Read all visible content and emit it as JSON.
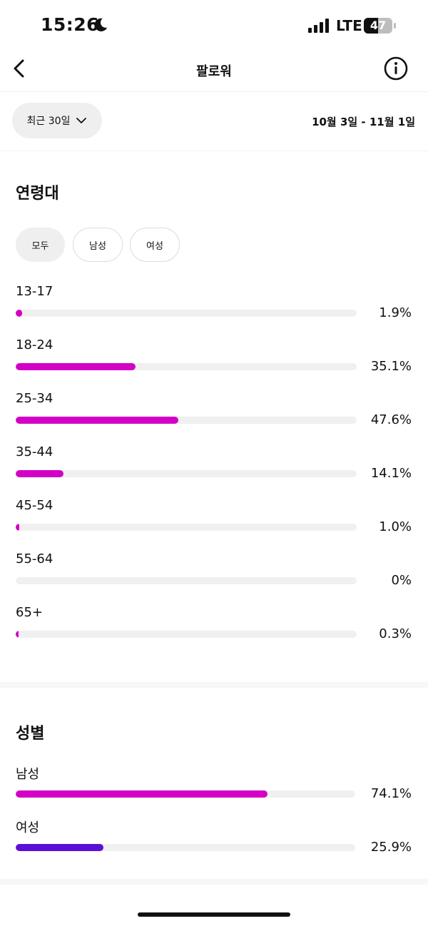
{
  "status_bar": {
    "time": "15:26",
    "network": "LTE",
    "battery": "47"
  },
  "nav": {
    "title": "팔로워"
  },
  "range": {
    "selected": "최근 30일",
    "dates": "10월 3일 - 11월 1일"
  },
  "age": {
    "title": "연령대",
    "filters": [
      {
        "label": "모두",
        "active": true
      },
      {
        "label": "남성",
        "active": false
      },
      {
        "label": "여성",
        "active": false
      }
    ],
    "bar_color": "#d300c5",
    "rows": [
      {
        "label": "13-17",
        "value": 1.9,
        "display": "1.9%"
      },
      {
        "label": "18-24",
        "value": 35.1,
        "display": "35.1%"
      },
      {
        "label": "25-34",
        "value": 47.6,
        "display": "47.6%"
      },
      {
        "label": "35-44",
        "value": 14.1,
        "display": "14.1%"
      },
      {
        "label": "45-54",
        "value": 1.0,
        "display": "1.0%"
      },
      {
        "label": "55-64",
        "value": 0,
        "display": "0%"
      },
      {
        "label": "65+",
        "value": 0.3,
        "display": "0.3%"
      }
    ]
  },
  "gender": {
    "title": "성별",
    "rows": [
      {
        "label": "남성",
        "value": 74.1,
        "display": "74.1%",
        "color": "#d300c5"
      },
      {
        "label": "여성",
        "value": 25.9,
        "display": "25.9%",
        "color": "#5b0fd6"
      }
    ]
  }
}
